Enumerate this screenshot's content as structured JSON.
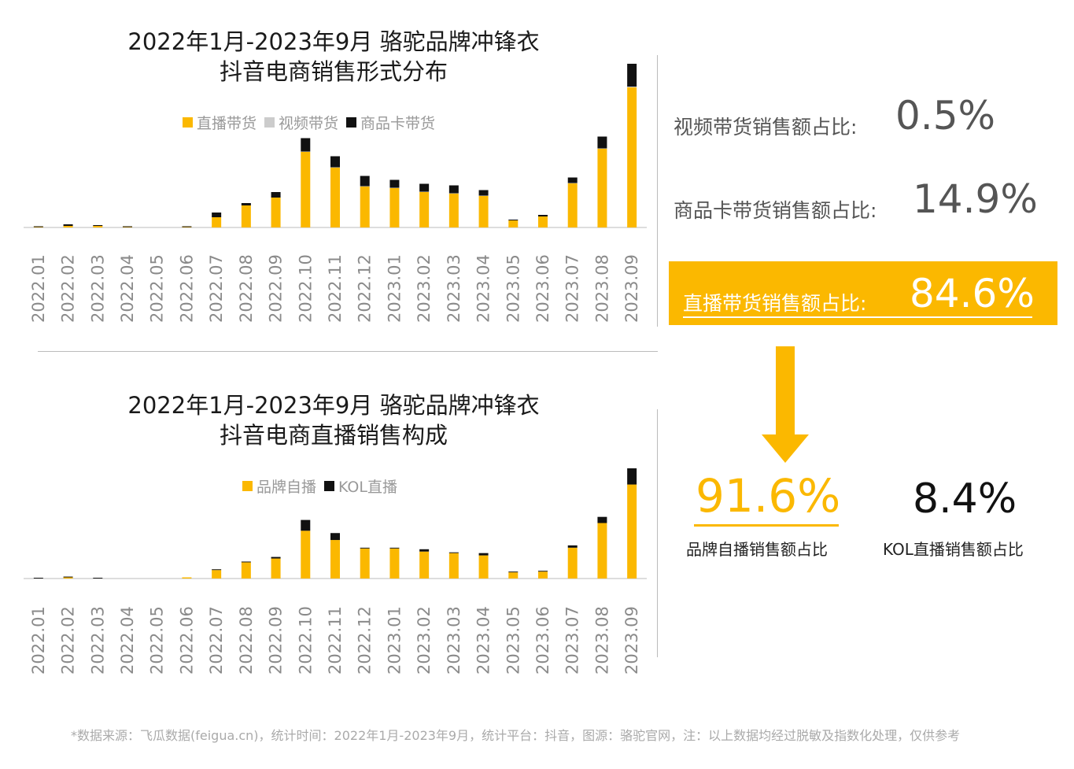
{
  "colors": {
    "yellow": "#fbb800",
    "black": "#111111",
    "gray": "#cccccc",
    "text_gray": "#555555"
  },
  "chart_data": [
    {
      "type": "bar",
      "stacked": true,
      "title_line1": "2022年1月-2023年9月 骆驼品牌冲锋衣",
      "title_line2": "抖音电商销售形式分布",
      "legend_position": "top",
      "categories": [
        "2022.01",
        "2022.02",
        "2022.03",
        "2022.04",
        "2022.05",
        "2022.06",
        "2022.07",
        "2022.08",
        "2022.09",
        "2022.10",
        "2022.11",
        "2022.12",
        "2023.01",
        "2023.02",
        "2023.03",
        "2023.04",
        "2023.05",
        "2023.06",
        "2023.07",
        "2023.08",
        "2023.09"
      ],
      "series": [
        {
          "name": "直播带货",
          "color": "#fbb800",
          "values": [
            0.5,
            2,
            2,
            0.5,
            0,
            0.5,
            13,
            28,
            38,
            96,
            76,
            52,
            50,
            45,
            43,
            40,
            9,
            14,
            56,
            100,
            178
          ]
        },
        {
          "name": "视频带货",
          "color": "#cccccc",
          "values": [
            0,
            0,
            0,
            0,
            0,
            0,
            0,
            0,
            0,
            0.5,
            0.5,
            0.5,
            0.5,
            0.5,
            0.5,
            0.5,
            0,
            0,
            0.5,
            0.5,
            1
          ]
        },
        {
          "name": "商品卡带货",
          "color": "#111111",
          "values": [
            1,
            2,
            1,
            1,
            0,
            1,
            6,
            3,
            7,
            17,
            14,
            13,
            10,
            10,
            10,
            7,
            1,
            2,
            7,
            15,
            29
          ]
        }
      ]
    },
    {
      "type": "bar",
      "stacked": true,
      "title_line1": "2022年1月-2023年9月 骆驼品牌冲锋衣",
      "title_line2": "抖音电商直播销售构成",
      "legend_position": "top",
      "categories": [
        "2022.01",
        "2022.02",
        "2022.03",
        "2022.04",
        "2022.05",
        "2022.06",
        "2022.07",
        "2022.08",
        "2022.09",
        "2022.10",
        "2022.11",
        "2022.12",
        "2023.01",
        "2023.02",
        "2023.03",
        "2023.04",
        "2023.05",
        "2023.06",
        "2023.07",
        "2023.08",
        "2023.09"
      ],
      "series": [
        {
          "name": "品牌自播",
          "color": "#fbb800",
          "values": [
            0,
            1.5,
            0,
            0,
            0,
            1.5,
            11,
            21,
            26,
            62,
            50,
            39,
            39,
            35,
            33,
            30,
            8,
            9,
            40,
            72,
            122
          ]
        },
        {
          "name": "KOL直播",
          "color": "#111111",
          "values": [
            1,
            1,
            1,
            0,
            0,
            0,
            1,
            1,
            2,
            14,
            9,
            1,
            1,
            3,
            1,
            3,
            1,
            1,
            3,
            8,
            21
          ]
        }
      ]
    }
  ],
  "stats": {
    "video_label": "视频带货销售额占比:",
    "video_value": "0.5%",
    "card_label": "商品卡带货销售额占比:",
    "card_value": "14.9%",
    "live_label": "直播带货销售额占比:",
    "live_value": "84.6%",
    "brand_value": "91.6%",
    "brand_label": "品牌自播销售额占比",
    "kol_value": "8.4%",
    "kol_label": "KOL直播销售额占比"
  },
  "footnote": "*数据来源：飞瓜数据(feigua.cn)，统计时间：2022年1月-2023年9月，统计平台：抖音，图源：骆驼官网，注：以上数据均经过脱敏及指数化处理，仅供参考"
}
